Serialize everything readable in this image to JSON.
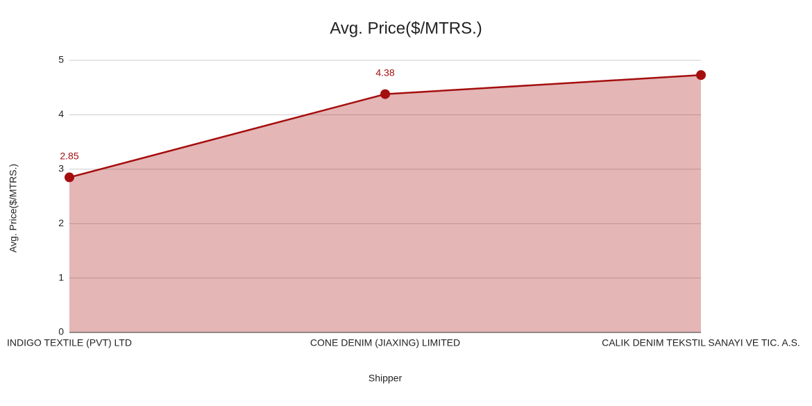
{
  "chart_data": {
    "type": "area",
    "title": "Avg. Price($/MTRS.)",
    "x_label": "Shipper",
    "y_label": "Avg. Price($/MTRS.)",
    "categories": [
      "INDIGO TEXTILE (PVT) LTD",
      "CONE DENIM (JIAXING) LIMITED",
      "CALIK DENIM TEKSTIL SANAYI VE TIC. A.S."
    ],
    "series": [
      {
        "name": "Avg. Price($/MTRS.)",
        "color": "#a50e0e",
        "values": [
          2.85,
          4.38,
          4.73
        ],
        "value_labels": [
          "2.85",
          "4.38",
          null
        ]
      }
    ],
    "ylim": [
      0,
      5
    ],
    "yticks": [
      0,
      1,
      2,
      3,
      4,
      5
    ],
    "grid": true
  }
}
